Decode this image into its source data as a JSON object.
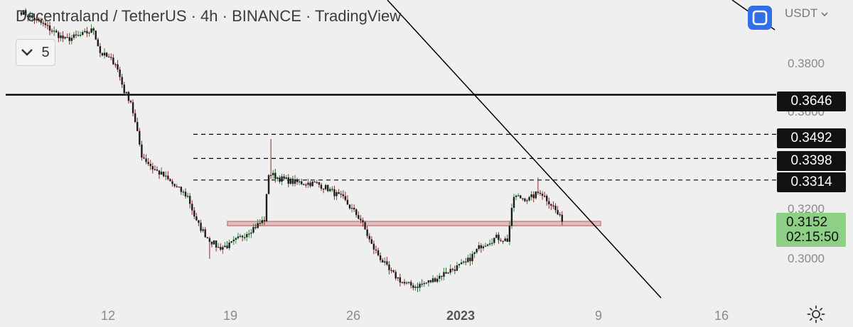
{
  "header": {
    "title": "Decentraland / TetherUS · 4h · BINANCE · TradingView",
    "indicator_count": "5",
    "currency": "USDT"
  },
  "icons": {
    "collapse": "chevron-down-icon",
    "fullscreen": "fullscreen-icon",
    "currency_menu": "chevron-down-icon",
    "settings": "sun-settings-icon"
  },
  "colors": {
    "background": "#efefef",
    "candle": "#1c1c1c",
    "bull_wick": "#2f8a3a",
    "bear_wick": "#8b2a2a",
    "support_zone": "#c98484",
    "current_price_label": "#8ccf85",
    "level_label": "#111111",
    "fullscreen_button": "#2f6fe8"
  },
  "chart_data": {
    "type": "candlestick",
    "y_axis": {
      "ticks": [
        "0.3800",
        "0.3600",
        "0.3200",
        "0.3000"
      ],
      "tick_values": [
        0.38,
        0.36,
        0.32,
        0.3
      ],
      "range": [
        0.2855,
        0.4015
      ]
    },
    "x_axis": {
      "ticks": [
        "12",
        "19",
        "26",
        "2023",
        "9",
        "16"
      ],
      "bold_ticks": [
        "2023"
      ]
    },
    "horizontal_levels": [
      {
        "label": "0.3646",
        "value": 0.3646,
        "style": "solid"
      },
      {
        "label": "0.3492",
        "value": 0.3492,
        "style": "dashed"
      },
      {
        "label": "0.3398",
        "value": 0.3398,
        "style": "dashed"
      },
      {
        "label": "0.3314",
        "value": 0.3314,
        "style": "dashed"
      }
    ],
    "current_price": {
      "price": "0.3152",
      "countdown": "02:15:50",
      "value": 0.3152
    },
    "support_zone": {
      "low": 0.3136,
      "high": 0.3153
    },
    "trendline": {
      "from_x": "9",
      "note": "descending trendline from top of chart toward bottom right"
    },
    "series_keypoints": [
      [
        0,
        0.397
      ],
      [
        10,
        0.392
      ],
      [
        20,
        0.386
      ],
      [
        28,
        0.388
      ],
      [
        33,
        0.39
      ],
      [
        36,
        0.381
      ],
      [
        40,
        0.3787
      ],
      [
        43,
        0.377
      ],
      [
        47,
        0.366
      ],
      [
        50,
        0.362
      ],
      [
        55,
        0.341
      ],
      [
        60,
        0.336
      ],
      [
        65,
        0.333
      ],
      [
        70,
        0.329
      ],
      [
        76,
        0.325
      ],
      [
        80,
        0.315
      ],
      [
        85,
        0.309
      ],
      [
        90,
        0.305
      ],
      [
        95,
        0.306
      ],
      [
        100,
        0.309
      ],
      [
        103,
        0.311
      ],
      [
        108,
        0.314
      ],
      [
        111,
        0.316
      ],
      [
        113,
        0.334
      ],
      [
        118,
        0.332
      ],
      [
        125,
        0.3305
      ],
      [
        135,
        0.33
      ],
      [
        140,
        0.328
      ],
      [
        147,
        0.324
      ],
      [
        155,
        0.316
      ],
      [
        160,
        0.306
      ],
      [
        168,
        0.296
      ],
      [
        175,
        0.291
      ],
      [
        180,
        0.29
      ],
      [
        187,
        0.292
      ],
      [
        195,
        0.296
      ],
      [
        203,
        0.299
      ],
      [
        210,
        0.306
      ],
      [
        217,
        0.309
      ],
      [
        222,
        0.308
      ],
      [
        225,
        0.325
      ],
      [
        232,
        0.324
      ],
      [
        237,
        0.327
      ],
      [
        243,
        0.321
      ],
      [
        247,
        0.3152
      ]
    ]
  }
}
